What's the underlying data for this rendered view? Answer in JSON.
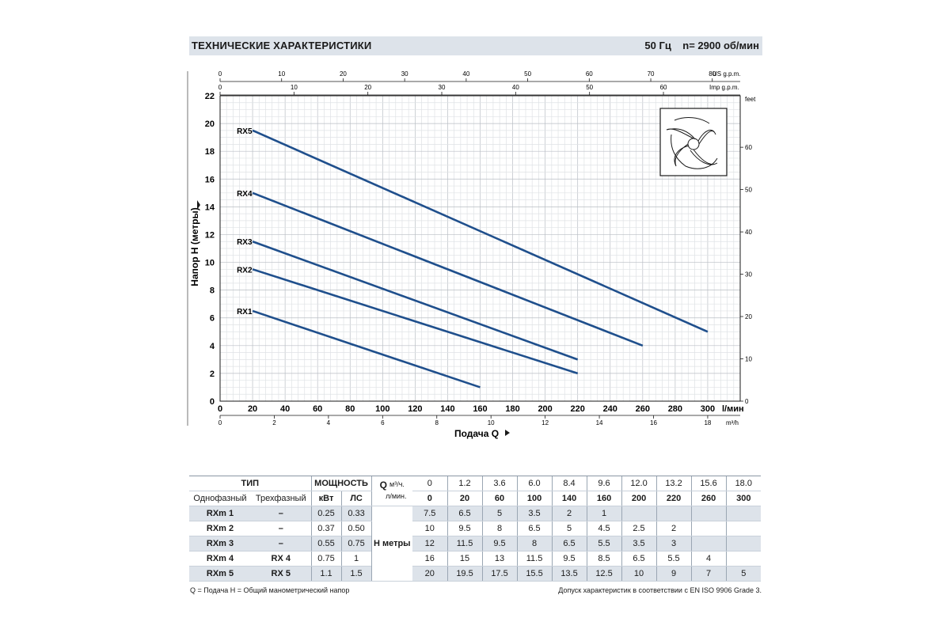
{
  "header": {
    "title": "ТЕХНИЧЕСКИЕ ХАРАКТЕРИСТИКИ",
    "spec": "50 Гц    n= 2900 об/мин"
  },
  "chart_data": {
    "type": "line",
    "ylabel": "Напор H (метры)",
    "xlabel": "Подача Q",
    "x_unit": "l/мин",
    "x_unit_m3": "m³/h",
    "x_unit_us": "US g.p.m.",
    "x_unit_imp": "Imp g.p.m.",
    "y2_unit": "feet",
    "xlim": [
      0,
      320
    ],
    "ylim": [
      0,
      22
    ],
    "x_ticks_lmin": [
      0,
      20,
      40,
      60,
      80,
      100,
      120,
      140,
      160,
      180,
      200,
      220,
      240,
      260,
      280,
      300
    ],
    "x_ticks_m3h": [
      0,
      2,
      4,
      6,
      8,
      10,
      12,
      14,
      16,
      18
    ],
    "x_ticks_usgpm": [
      0,
      10,
      20,
      30,
      40,
      50,
      60,
      70,
      80
    ],
    "x_ticks_impgpm": [
      0,
      10,
      20,
      30,
      40,
      50,
      60
    ],
    "y_ticks": [
      0,
      2,
      4,
      6,
      8,
      10,
      12,
      14,
      16,
      18,
      20,
      22
    ],
    "y2_ticks_feet": [
      0,
      10,
      20,
      30,
      40,
      50,
      60
    ],
    "grid": true,
    "line_color": "#1f4f8c",
    "series": [
      {
        "name": "RX5",
        "x": [
          20,
          300
        ],
        "y": [
          19.5,
          5
        ]
      },
      {
        "name": "RX4",
        "x": [
          20,
          260
        ],
        "y": [
          15,
          4
        ]
      },
      {
        "name": "RX3",
        "x": [
          20,
          220
        ],
        "y": [
          11.5,
          3
        ]
      },
      {
        "name": "RX2",
        "x": [
          20,
          220
        ],
        "y": [
          9.5,
          2
        ]
      },
      {
        "name": "RX1",
        "x": [
          20,
          160
        ],
        "y": [
          6.5,
          1
        ]
      }
    ]
  },
  "table": {
    "h_type": "ТИП",
    "h_power": "МОЩНОСТЬ",
    "h_q": "Q",
    "h_q_unit1": "м³/ч.",
    "h_q_unit2": "л/мин.",
    "h_single": "Однофазный",
    "h_three": "Трехфазный",
    "h_kw": "кВт",
    "h_hp": "ЛС",
    "h_head": "H  метры",
    "q_m3h": [
      "0",
      "1.2",
      "3.6",
      "6.0",
      "8.4",
      "9.6",
      "12.0",
      "13.2",
      "15.6",
      "18.0"
    ],
    "q_lmin": [
      "0",
      "20",
      "60",
      "100",
      "140",
      "160",
      "200",
      "220",
      "260",
      "300"
    ],
    "rows": [
      {
        "single": "RXm 1",
        "three": "–",
        "kw": "0.25",
        "hp": "0.33",
        "h": [
          "7.5",
          "6.5",
          "5",
          "3.5",
          "2",
          "1",
          "",
          "",
          "",
          ""
        ]
      },
      {
        "single": "RXm 2",
        "three": "–",
        "kw": "0.37",
        "hp": "0.50",
        "h": [
          "10",
          "9.5",
          "8",
          "6.5",
          "5",
          "4.5",
          "2.5",
          "2",
          "",
          ""
        ]
      },
      {
        "single": "RXm 3",
        "three": "–",
        "kw": "0.55",
        "hp": "0.75",
        "h": [
          "12",
          "11.5",
          "9.5",
          "8",
          "6.5",
          "5.5",
          "3.5",
          "3",
          "",
          ""
        ]
      },
      {
        "single": "RXm 4",
        "three": "RX 4",
        "kw": "0.75",
        "hp": "1",
        "h": [
          "16",
          "15",
          "13",
          "11.5",
          "9.5",
          "8.5",
          "6.5",
          "5.5",
          "4",
          ""
        ]
      },
      {
        "single": "RXm 5",
        "three": "RX 5",
        "kw": "1.1",
        "hp": "1.5",
        "h": [
          "20",
          "19.5",
          "17.5",
          "15.5",
          "13.5",
          "12.5",
          "10",
          "9",
          "7",
          "5"
        ]
      }
    ]
  },
  "footnotes": {
    "left": "Q = Подача   H = Общий манометрический напор",
    "right": "Допуск характеристик в соответствии с EN ISO 9906 Grade 3."
  },
  "icons": {
    "impeller": "impeller-icon"
  }
}
